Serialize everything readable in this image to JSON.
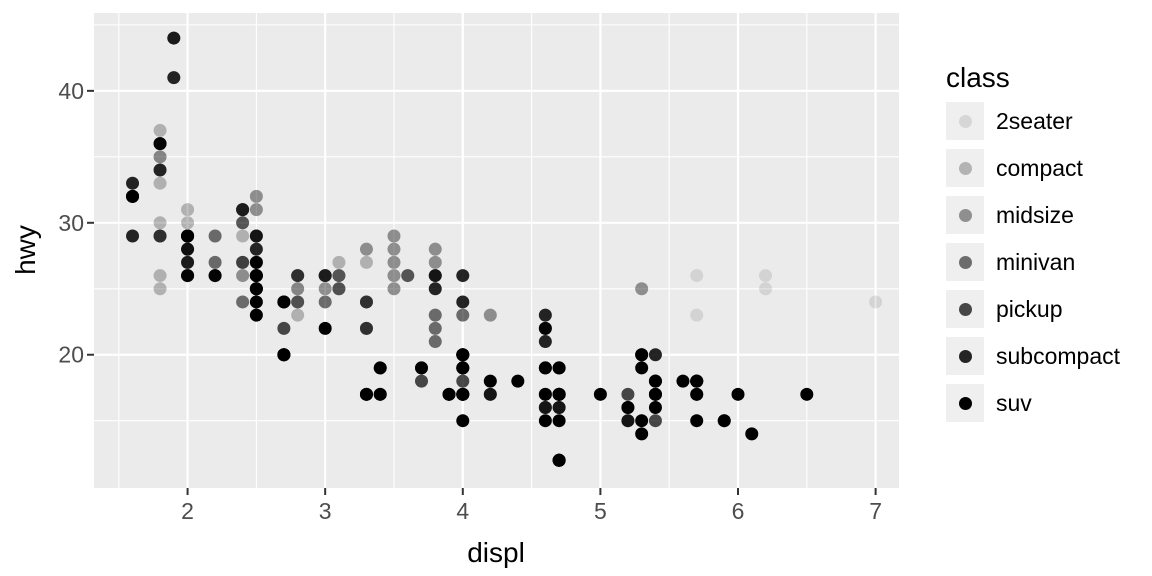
{
  "chart_data": {
    "type": "scatter",
    "title": "",
    "xlabel": "displ",
    "ylabel": "hwy",
    "x_ticks": [
      2,
      3,
      4,
      5,
      6,
      7
    ],
    "x_minor_ticks": [
      1.5,
      2.5,
      3.5,
      4.5,
      5.5,
      6.5
    ],
    "y_ticks": [
      20,
      30,
      40
    ],
    "y_minor_ticks": [
      15,
      25,
      35,
      45
    ],
    "xlim": [
      1.32,
      7.17
    ],
    "ylim": [
      9.9,
      45.9
    ],
    "grid": true,
    "point_color": "#000000",
    "style": {
      "panel_bg": "#ebebeb",
      "grid_color": "#ffffff",
      "tick_color": "#333333",
      "tick_label_color": "#4d4d4d",
      "title_color": "#000000",
      "legend_key_bg": "#efefef"
    },
    "legend": {
      "title": "class",
      "position": "right",
      "entries": [
        {
          "label": "2seater",
          "swatch": "#dadada"
        },
        {
          "label": "compact",
          "swatch": "#b6b6b6"
        },
        {
          "label": "midsize",
          "swatch": "#919191"
        },
        {
          "label": "minivan",
          "swatch": "#6d6d6d"
        },
        {
          "label": "pickup",
          "swatch": "#494949"
        },
        {
          "label": "subcompact",
          "swatch": "#242424"
        },
        {
          "label": "suv",
          "swatch": "#000000"
        }
      ]
    },
    "series": [
      {
        "name": "2seater",
        "alpha": 0.1,
        "points": [
          [
            5.7,
            26
          ],
          [
            5.7,
            23
          ],
          [
            6.2,
            26
          ],
          [
            6.2,
            25
          ],
          [
            7.0,
            24
          ]
        ]
      },
      {
        "name": "compact",
        "alpha": 0.25,
        "points": [
          [
            1.8,
            29
          ],
          [
            1.8,
            29
          ],
          [
            2.0,
            31
          ],
          [
            2.0,
            30
          ],
          [
            2.8,
            26
          ],
          [
            2.8,
            26
          ],
          [
            3.1,
            27
          ],
          [
            1.8,
            26
          ],
          [
            1.8,
            25
          ],
          [
            2.0,
            28
          ],
          [
            2.0,
            27
          ],
          [
            2.8,
            25
          ],
          [
            2.8,
            25
          ],
          [
            3.1,
            25
          ],
          [
            3.1,
            25
          ],
          [
            2.4,
            29
          ],
          [
            2.4,
            27
          ],
          [
            2.5,
            25
          ],
          [
            2.5,
            27
          ],
          [
            2.5,
            25
          ],
          [
            2.5,
            27
          ],
          [
            2.2,
            27
          ],
          [
            2.2,
            29
          ],
          [
            2.4,
            31
          ],
          [
            2.4,
            31
          ],
          [
            3.0,
            26
          ],
          [
            3.0,
            26
          ],
          [
            3.3,
            27
          ],
          [
            1.8,
            30
          ],
          [
            1.8,
            33
          ],
          [
            1.8,
            35
          ],
          [
            1.8,
            37
          ],
          [
            1.8,
            35
          ],
          [
            2.0,
            29
          ],
          [
            2.0,
            26
          ],
          [
            2.0,
            29
          ],
          [
            2.0,
            29
          ],
          [
            2.8,
            24
          ],
          [
            1.9,
            44
          ],
          [
            2.0,
            29
          ],
          [
            2.0,
            26
          ],
          [
            2.0,
            29
          ],
          [
            2.0,
            29
          ],
          [
            2.5,
            29
          ],
          [
            2.5,
            29
          ],
          [
            2.8,
            23
          ],
          [
            2.8,
            24
          ]
        ]
      },
      {
        "name": "midsize",
        "alpha": 0.4,
        "points": [
          [
            2.8,
            24
          ],
          [
            3.1,
            25
          ],
          [
            4.2,
            23
          ],
          [
            2.4,
            27
          ],
          [
            2.4,
            30
          ],
          [
            3.1,
            26
          ],
          [
            3.5,
            29
          ],
          [
            3.6,
            26
          ],
          [
            2.4,
            26
          ],
          [
            2.4,
            27
          ],
          [
            2.4,
            30
          ],
          [
            2.4,
            31
          ],
          [
            2.5,
            26
          ],
          [
            2.5,
            26
          ],
          [
            3.3,
            28
          ],
          [
            2.5,
            31
          ],
          [
            2.5,
            32
          ],
          [
            3.5,
            27
          ],
          [
            3.5,
            26
          ],
          [
            3.0,
            26
          ],
          [
            3.0,
            25
          ],
          [
            3.5,
            25
          ],
          [
            3.1,
            26
          ],
          [
            3.8,
            26
          ],
          [
            3.8,
            27
          ],
          [
            3.8,
            28
          ],
          [
            5.3,
            25
          ],
          [
            2.2,
            29
          ],
          [
            2.2,
            27
          ],
          [
            2.4,
            31
          ],
          [
            2.4,
            31
          ],
          [
            3.0,
            26
          ],
          [
            3.0,
            26
          ],
          [
            3.5,
            28
          ],
          [
            1.8,
            29
          ],
          [
            1.8,
            29
          ],
          [
            2.0,
            28
          ],
          [
            2.0,
            29
          ],
          [
            2.8,
            26
          ],
          [
            2.8,
            26
          ],
          [
            3.6,
            26
          ]
        ]
      },
      {
        "name": "minivan",
        "alpha": 0.55,
        "points": [
          [
            2.4,
            24
          ],
          [
            3.0,
            24
          ],
          [
            3.3,
            22
          ],
          [
            3.3,
            22
          ],
          [
            3.3,
            17
          ],
          [
            3.3,
            24
          ],
          [
            3.3,
            24
          ],
          [
            3.8,
            22
          ],
          [
            3.8,
            21
          ],
          [
            3.8,
            23
          ],
          [
            4.0,
            23
          ]
        ]
      },
      {
        "name": "pickup",
        "alpha": 0.7,
        "points": [
          [
            3.7,
            19
          ],
          [
            3.7,
            18
          ],
          [
            3.9,
            17
          ],
          [
            3.9,
            17
          ],
          [
            4.7,
            19
          ],
          [
            4.7,
            19
          ],
          [
            4.7,
            12
          ],
          [
            5.2,
            17
          ],
          [
            5.2,
            15
          ],
          [
            4.7,
            16
          ],
          [
            4.7,
            12
          ],
          [
            4.7,
            17
          ],
          [
            4.7,
            17
          ],
          [
            4.7,
            16
          ],
          [
            4.7,
            12
          ],
          [
            5.2,
            15
          ],
          [
            5.2,
            16
          ],
          [
            5.7,
            17
          ],
          [
            5.9,
            15
          ],
          [
            4.2,
            17
          ],
          [
            4.2,
            17
          ],
          [
            4.6,
            16
          ],
          [
            4.6,
            16
          ],
          [
            4.6,
            17
          ],
          [
            5.4,
            15
          ],
          [
            5.4,
            17
          ],
          [
            2.7,
            20
          ],
          [
            2.7,
            20
          ],
          [
            2.7,
            22
          ],
          [
            3.4,
            17
          ],
          [
            3.4,
            19
          ],
          [
            4.0,
            18
          ],
          [
            4.0,
            20
          ]
        ]
      },
      {
        "name": "subcompact",
        "alpha": 0.85,
        "points": [
          [
            3.8,
            26
          ],
          [
            3.8,
            25
          ],
          [
            4.0,
            26
          ],
          [
            4.0,
            24
          ],
          [
            4.6,
            21
          ],
          [
            4.6,
            22
          ],
          [
            4.6,
            23
          ],
          [
            4.6,
            22
          ],
          [
            5.4,
            20
          ],
          [
            1.6,
            33
          ],
          [
            1.6,
            32
          ],
          [
            1.6,
            32
          ],
          [
            1.6,
            29
          ],
          [
            1.6,
            32
          ],
          [
            1.8,
            34
          ],
          [
            1.8,
            36
          ],
          [
            1.8,
            36
          ],
          [
            2.0,
            29
          ],
          [
            2.0,
            26
          ],
          [
            2.0,
            29
          ],
          [
            2.0,
            28
          ],
          [
            2.0,
            27
          ],
          [
            2.7,
            24
          ],
          [
            2.7,
            24
          ],
          [
            2.7,
            24
          ],
          [
            2.2,
            26
          ],
          [
            2.2,
            26
          ],
          [
            2.5,
            26
          ],
          [
            2.5,
            26
          ],
          [
            1.9,
            44
          ],
          [
            1.9,
            41
          ],
          [
            2.0,
            29
          ],
          [
            2.0,
            26
          ],
          [
            2.5,
            28
          ],
          [
            2.5,
            29
          ]
        ]
      },
      {
        "name": "suv",
        "alpha": 1.0,
        "points": [
          [
            5.3,
            20
          ],
          [
            5.3,
            15
          ],
          [
            5.3,
            20
          ],
          [
            5.7,
            17
          ],
          [
            6.0,
            17
          ],
          [
            5.3,
            19
          ],
          [
            5.3,
            14
          ],
          [
            5.7,
            15
          ],
          [
            6.5,
            17
          ],
          [
            3.9,
            17
          ],
          [
            4.7,
            17
          ],
          [
            4.7,
            12
          ],
          [
            4.7,
            17
          ],
          [
            5.2,
            16
          ],
          [
            5.7,
            18
          ],
          [
            5.9,
            15
          ],
          [
            4.6,
            17
          ],
          [
            5.4,
            17
          ],
          [
            5.4,
            18
          ],
          [
            4.0,
            17
          ],
          [
            4.0,
            19
          ],
          [
            4.0,
            17
          ],
          [
            4.0,
            19
          ],
          [
            4.0,
            17
          ],
          [
            4.6,
            19
          ],
          [
            3.0,
            22
          ],
          [
            3.7,
            19
          ],
          [
            4.0,
            20
          ],
          [
            4.7,
            17
          ],
          [
            4.7,
            12
          ],
          [
            4.7,
            19
          ],
          [
            5.7,
            18
          ],
          [
            6.1,
            14
          ],
          [
            4.0,
            15
          ],
          [
            4.2,
            18
          ],
          [
            4.4,
            18
          ],
          [
            4.6,
            15
          ],
          [
            5.4,
            17
          ],
          [
            5.4,
            16
          ],
          [
            5.4,
            18
          ],
          [
            4.0,
            17
          ],
          [
            4.0,
            19
          ],
          [
            4.6,
            19
          ],
          [
            5.0,
            17
          ],
          [
            3.3,
            17
          ],
          [
            3.3,
            17
          ],
          [
            4.0,
            20
          ],
          [
            5.6,
            18
          ],
          [
            2.5,
            25
          ],
          [
            2.5,
            24
          ],
          [
            2.5,
            27
          ],
          [
            2.5,
            25
          ],
          [
            2.5,
            26
          ],
          [
            2.5,
            23
          ],
          [
            2.7,
            20
          ],
          [
            2.7,
            20
          ],
          [
            3.4,
            19
          ],
          [
            3.4,
            17
          ],
          [
            4.0,
            20
          ],
          [
            4.7,
            17
          ],
          [
            4.7,
            15
          ],
          [
            5.7,
            18
          ]
        ]
      }
    ]
  }
}
